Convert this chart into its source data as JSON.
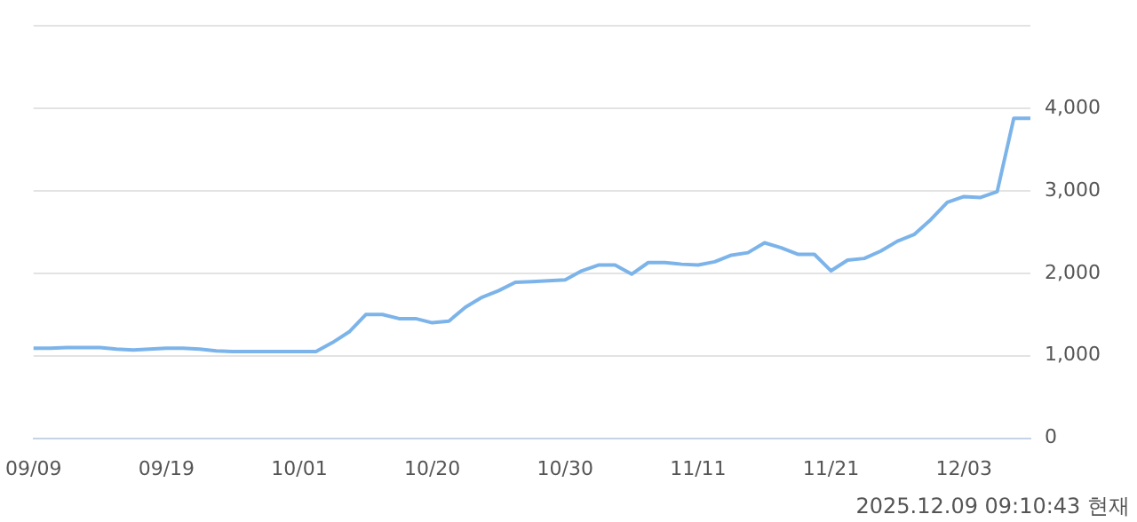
{
  "chart_data": {
    "type": "line",
    "categories": [
      "09/09",
      null,
      null,
      null,
      null,
      null,
      null,
      null,
      "09/19",
      null,
      null,
      null,
      null,
      null,
      null,
      null,
      "10/01",
      null,
      null,
      null,
      null,
      null,
      null,
      null,
      "10/20",
      null,
      null,
      null,
      null,
      null,
      null,
      null,
      "10/30",
      null,
      null,
      null,
      null,
      null,
      null,
      null,
      "11/11",
      null,
      null,
      null,
      null,
      null,
      null,
      null,
      "11/21",
      null,
      null,
      null,
      null,
      null,
      null,
      null,
      "12/03",
      null,
      null,
      null,
      null
    ],
    "series": [
      {
        "color": "#7cb4ea",
        "values": [
          1090,
          1090,
          1100,
          1100,
          1100,
          1080,
          1070,
          1080,
          1090,
          1090,
          1080,
          1060,
          1050,
          1050,
          1050,
          1050,
          1050,
          1050,
          1160,
          1290,
          1500,
          1500,
          1450,
          1450,
          1400,
          1420,
          1590,
          1710,
          1790,
          1890,
          1900,
          1910,
          1920,
          2030,
          2100,
          2100,
          1990,
          2130,
          2130,
          2110,
          2100,
          2140,
          2220,
          2250,
          2370,
          2310,
          2230,
          2230,
          2030,
          2160,
          2180,
          2270,
          2390,
          2470,
          2650,
          2860,
          2930,
          2920,
          2990,
          3880,
          3880
        ]
      }
    ],
    "ylim": [
      0,
      5000
    ],
    "yticks": [
      0,
      {
        "value": 1000,
        "label": "1,000"
      },
      {
        "value": 2000,
        "label": "2,000"
      },
      {
        "value": 3000,
        "label": "3,000"
      },
      {
        "value": 4000,
        "label": "4,000"
      },
      {
        "value": 5000,
        "label": null
      }
    ],
    "grid": "y",
    "legend": false,
    "marker": "none",
    "line_style": "solid",
    "annotations": [
      "2025.12.09 09:10:43 현재"
    ]
  }
}
